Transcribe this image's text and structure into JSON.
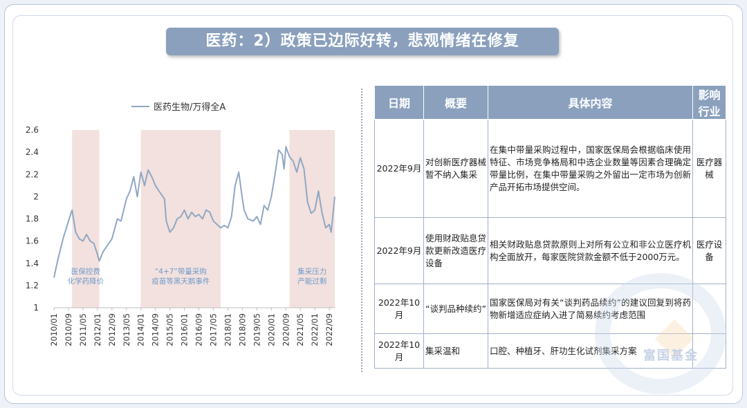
{
  "slide": {
    "title": "医药：2）政策已边际好转，悲观情绪在修复",
    "watermark": "富国基金"
  },
  "chart_data": {
    "type": "line",
    "title": "",
    "legend": [
      "医药生物/万得全A"
    ],
    "legend_position": "top",
    "x_ticks": [
      "2010/01",
      "2010/09",
      "2011/05",
      "2012/01",
      "2012/09",
      "2013/05",
      "2014/01",
      "2014/09",
      "2015/05",
      "2016/01",
      "2016/09",
      "2017/05",
      "2018/01",
      "2018/09",
      "2019/05",
      "2020/01",
      "2020/09",
      "2021/05",
      "2022/01",
      "2022/09"
    ],
    "y_ticks": [
      1,
      1.2,
      1.4,
      1.6,
      1.8,
      2,
      2.2,
      2.4,
      2.6
    ],
    "ylim": [
      1,
      2.6
    ],
    "grid": false,
    "series": [
      {
        "name": "医药生物/万得全A",
        "color": "#8fa7c2",
        "x": [
          "2010/01",
          "2010/03",
          "2010/06",
          "2010/09",
          "2010/11",
          "2011/01",
          "2011/03",
          "2011/05",
          "2011/07",
          "2011/09",
          "2011/11",
          "2012/01",
          "2012/02",
          "2012/04",
          "2012/06",
          "2012/09",
          "2012/12",
          "2013/02",
          "2013/05",
          "2013/07",
          "2013/09",
          "2013/11",
          "2014/01",
          "2014/03",
          "2014/05",
          "2014/07",
          "2014/09",
          "2014/11",
          "2015/02",
          "2015/03",
          "2015/05",
          "2015/07",
          "2015/09",
          "2015/11",
          "2016/01",
          "2016/03",
          "2016/05",
          "2016/07",
          "2016/09",
          "2016/11",
          "2017/01",
          "2017/03",
          "2017/05",
          "2017/07",
          "2017/09",
          "2017/11",
          "2018/01",
          "2018/03",
          "2018/05",
          "2018/07",
          "2018/09",
          "2018/10",
          "2018/12",
          "2019/03",
          "2019/05",
          "2019/07",
          "2019/09",
          "2019/11",
          "2020/01",
          "2020/03",
          "2020/05",
          "2020/07",
          "2020/08",
          "2020/09",
          "2020/11",
          "2021/01",
          "2021/03",
          "2021/05",
          "2021/07",
          "2021/09",
          "2021/11",
          "2022/01",
          "2022/03",
          "2022/05",
          "2022/07",
          "2022/09",
          "2022/10",
          "2022/12"
        ],
        "values": [
          1.27,
          1.42,
          1.62,
          1.78,
          1.88,
          1.68,
          1.62,
          1.6,
          1.66,
          1.6,
          1.58,
          1.48,
          1.42,
          1.5,
          1.55,
          1.62,
          1.8,
          1.78,
          1.98,
          2.05,
          2.18,
          2.0,
          2.22,
          2.1,
          2.24,
          2.18,
          2.1,
          2.05,
          1.98,
          1.78,
          1.68,
          1.72,
          1.8,
          1.82,
          1.88,
          1.8,
          1.86,
          1.82,
          1.84,
          1.8,
          1.88,
          1.86,
          1.78,
          1.75,
          1.72,
          1.74,
          1.72,
          1.82,
          2.1,
          2.22,
          1.98,
          1.88,
          1.8,
          1.78,
          1.82,
          1.75,
          1.92,
          1.88,
          2.0,
          2.2,
          2.42,
          2.38,
          2.25,
          2.45,
          2.36,
          2.32,
          2.22,
          2.35,
          2.25,
          1.95,
          1.85,
          1.88,
          2.05,
          1.85,
          1.72,
          1.75,
          1.68,
          2.0
        ]
      }
    ],
    "shaded_periods": [
      {
        "start": "2010/11",
        "end": "2012/02",
        "label_lines": [
          "医保控费",
          "化学药降价"
        ]
      },
      {
        "start": "2014/01",
        "end": "2017/09",
        "label_lines": [
          "“4+7”带量采购",
          "疫苗等黑天鹅事件"
        ]
      },
      {
        "start": "2020/11",
        "end": "2022/12",
        "label_lines": [
          "集采压力",
          "产能过剩"
        ]
      }
    ],
    "shade_color": "#f3e1df",
    "annotation_color": "#6f9bc9"
  },
  "table": {
    "headers": [
      "日期",
      "概要",
      "具体内容",
      "影响行业"
    ],
    "rows": [
      {
        "date": "2022年9月",
        "summary": "对创新医疗器械暂不纳入集采",
        "detail": "在集中带量采购过程中，国家医保局会根据临床使用特征、市场竞争格局和中选企业数量等因素合理确定带量比例，在集中带量采购之外留出一定市场为创新产品开拓市场提供空间。",
        "industry": "医疗器械"
      },
      {
        "date": "2022年9月",
        "summary": "使用财政贴息贷款更新改造医疗设备",
        "detail": "相关财政贴息贷款原则上对所有公立和非公立医疗机构全面放开，每家医院贷款金额不低于2000万元。",
        "industry": "医疗设备"
      },
      {
        "date": "2022年10月",
        "summary": "“谈判品种续约”",
        "detail": "国家医保局对有关“谈判药品续约”的建议回复到将药物新增适应症纳入进了简易续约考虑范围",
        "industry": ""
      },
      {
        "date": "2022年10月",
        "summary": "集采温和",
        "detail": "口腔、种植牙、肝功生化试剂集采方案",
        "industry": ""
      }
    ]
  }
}
